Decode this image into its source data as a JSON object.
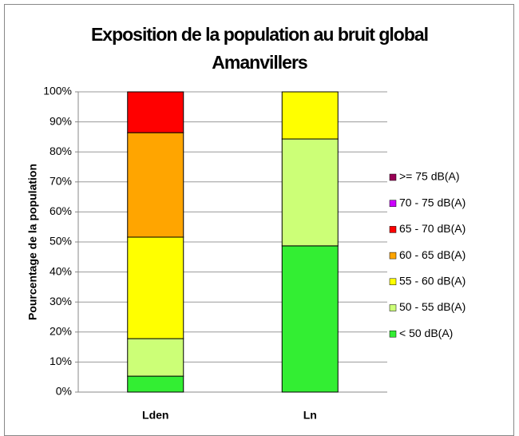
{
  "chart_data": {
    "type": "stacked_bar",
    "title": "Exposition de la population au bruit global",
    "subtitle": "Amanvillers",
    "y_label": "Pourcentage de la population",
    "categories": [
      "Lden",
      "Ln"
    ],
    "series": [
      {
        "name": "< 50 dB(A)",
        "color": "#33ee33",
        "values": [
          5.3,
          48.7
        ]
      },
      {
        "name": "50 - 55 dB(A)",
        "color": "#ccff77",
        "values": [
          12.5,
          35.6
        ]
      },
      {
        "name": "55 - 60 dB(A)",
        "color": "#ffff00",
        "values": [
          33.8,
          15.7
        ]
      },
      {
        "name": "60 - 65 dB(A)",
        "color": "#ffa500",
        "values": [
          34.8,
          0
        ]
      },
      {
        "name": "65 - 70 dB(A)",
        "color": "#ff0000",
        "values": [
          13.6,
          0
        ]
      },
      {
        "name": "70 - 75 dB(A)",
        "color": "#cc00ff",
        "values": [
          0,
          0
        ]
      },
      {
        "name": ">= 75 dB(A)",
        "color": "#990055",
        "values": [
          0,
          0
        ]
      }
    ],
    "ylim": [
      0,
      100
    ],
    "yticks": [
      {
        "value": 0,
        "label": "0%"
      },
      {
        "value": 10,
        "label": "10%"
      },
      {
        "value": 20,
        "label": "20%"
      },
      {
        "value": 30,
        "label": "30%"
      },
      {
        "value": 40,
        "label": "40%"
      },
      {
        "value": 50,
        "label": "50%"
      },
      {
        "value": 60,
        "label": "60%"
      },
      {
        "value": 70,
        "label": "70%"
      },
      {
        "value": 80,
        "label": "80%"
      },
      {
        "value": 90,
        "label": "90%"
      },
      {
        "value": 100,
        "label": "100%"
      }
    ],
    "grid": true,
    "legend": "right"
  }
}
